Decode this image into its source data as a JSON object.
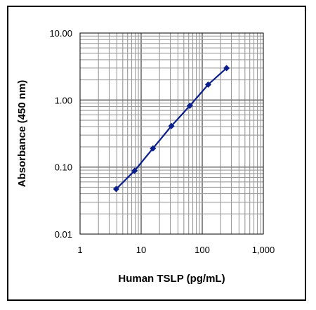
{
  "chart_data": {
    "type": "line",
    "xlabel": "Human TSLP (pg/mL)",
    "ylabel": "Absorbance (450 nm)",
    "x_scale": "log",
    "y_scale": "log",
    "xlim": [
      1,
      1000
    ],
    "ylim": [
      0.01,
      10
    ],
    "x_ticks": [
      "1",
      "10",
      "100",
      "1,000"
    ],
    "y_ticks": [
      "10.00",
      "1.00",
      "0.10",
      "0.01"
    ],
    "grid": "major and minor",
    "series": [
      {
        "color": "#0a1e8c",
        "x": [
          3.9,
          7.8,
          15.6,
          31.3,
          62.5,
          125,
          250
        ],
        "y": [
          0.047,
          0.088,
          0.19,
          0.41,
          0.82,
          1.7,
          3.0
        ]
      }
    ]
  }
}
